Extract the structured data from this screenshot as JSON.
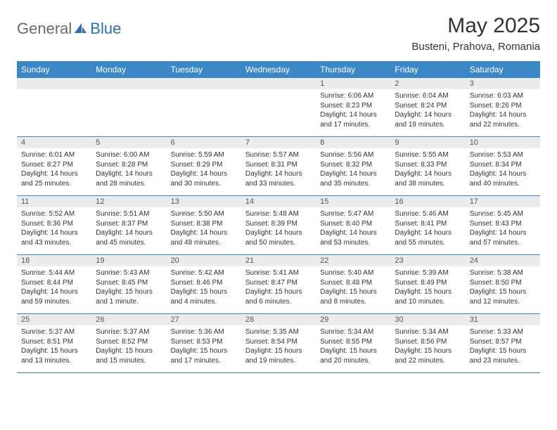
{
  "logo": {
    "text_general": "General",
    "text_blue": "Blue"
  },
  "title": "May 2025",
  "location": "Busteni, Prahova, Romania",
  "colors": {
    "header_bg": "#3b87c8",
    "header_text": "#ffffff",
    "daynum_bg": "#ececec",
    "row_border": "#3b87c8",
    "logo_general": "#6b6b6b",
    "logo_blue": "#2f6fad"
  },
  "day_headers": [
    "Sunday",
    "Monday",
    "Tuesday",
    "Wednesday",
    "Thursday",
    "Friday",
    "Saturday"
  ],
  "weeks": [
    [
      {
        "blank": true
      },
      {
        "blank": true
      },
      {
        "blank": true
      },
      {
        "blank": true
      },
      {
        "num": "1",
        "sunrise": "Sunrise: 6:06 AM",
        "sunset": "Sunset: 8:23 PM",
        "daylight": "Daylight: 14 hours and 17 minutes."
      },
      {
        "num": "2",
        "sunrise": "Sunrise: 6:04 AM",
        "sunset": "Sunset: 8:24 PM",
        "daylight": "Daylight: 14 hours and 19 minutes."
      },
      {
        "num": "3",
        "sunrise": "Sunrise: 6:03 AM",
        "sunset": "Sunset: 8:26 PM",
        "daylight": "Daylight: 14 hours and 22 minutes."
      }
    ],
    [
      {
        "num": "4",
        "sunrise": "Sunrise: 6:01 AM",
        "sunset": "Sunset: 8:27 PM",
        "daylight": "Daylight: 14 hours and 25 minutes."
      },
      {
        "num": "5",
        "sunrise": "Sunrise: 6:00 AM",
        "sunset": "Sunset: 8:28 PM",
        "daylight": "Daylight: 14 hours and 28 minutes."
      },
      {
        "num": "6",
        "sunrise": "Sunrise: 5:59 AM",
        "sunset": "Sunset: 8:29 PM",
        "daylight": "Daylight: 14 hours and 30 minutes."
      },
      {
        "num": "7",
        "sunrise": "Sunrise: 5:57 AM",
        "sunset": "Sunset: 8:31 PM",
        "daylight": "Daylight: 14 hours and 33 minutes."
      },
      {
        "num": "8",
        "sunrise": "Sunrise: 5:56 AM",
        "sunset": "Sunset: 8:32 PM",
        "daylight": "Daylight: 14 hours and 35 minutes."
      },
      {
        "num": "9",
        "sunrise": "Sunrise: 5:55 AM",
        "sunset": "Sunset: 8:33 PM",
        "daylight": "Daylight: 14 hours and 38 minutes."
      },
      {
        "num": "10",
        "sunrise": "Sunrise: 5:53 AM",
        "sunset": "Sunset: 8:34 PM",
        "daylight": "Daylight: 14 hours and 40 minutes."
      }
    ],
    [
      {
        "num": "11",
        "sunrise": "Sunrise: 5:52 AM",
        "sunset": "Sunset: 8:36 PM",
        "daylight": "Daylight: 14 hours and 43 minutes."
      },
      {
        "num": "12",
        "sunrise": "Sunrise: 5:51 AM",
        "sunset": "Sunset: 8:37 PM",
        "daylight": "Daylight: 14 hours and 45 minutes."
      },
      {
        "num": "13",
        "sunrise": "Sunrise: 5:50 AM",
        "sunset": "Sunset: 8:38 PM",
        "daylight": "Daylight: 14 hours and 48 minutes."
      },
      {
        "num": "14",
        "sunrise": "Sunrise: 5:48 AM",
        "sunset": "Sunset: 8:39 PM",
        "daylight": "Daylight: 14 hours and 50 minutes."
      },
      {
        "num": "15",
        "sunrise": "Sunrise: 5:47 AM",
        "sunset": "Sunset: 8:40 PM",
        "daylight": "Daylight: 14 hours and 53 minutes."
      },
      {
        "num": "16",
        "sunrise": "Sunrise: 5:46 AM",
        "sunset": "Sunset: 8:41 PM",
        "daylight": "Daylight: 14 hours and 55 minutes."
      },
      {
        "num": "17",
        "sunrise": "Sunrise: 5:45 AM",
        "sunset": "Sunset: 8:43 PM",
        "daylight": "Daylight: 14 hours and 57 minutes."
      }
    ],
    [
      {
        "num": "18",
        "sunrise": "Sunrise: 5:44 AM",
        "sunset": "Sunset: 8:44 PM",
        "daylight": "Daylight: 14 hours and 59 minutes."
      },
      {
        "num": "19",
        "sunrise": "Sunrise: 5:43 AM",
        "sunset": "Sunset: 8:45 PM",
        "daylight": "Daylight: 15 hours and 1 minute."
      },
      {
        "num": "20",
        "sunrise": "Sunrise: 5:42 AM",
        "sunset": "Sunset: 8:46 PM",
        "daylight": "Daylight: 15 hours and 4 minutes."
      },
      {
        "num": "21",
        "sunrise": "Sunrise: 5:41 AM",
        "sunset": "Sunset: 8:47 PM",
        "daylight": "Daylight: 15 hours and 6 minutes."
      },
      {
        "num": "22",
        "sunrise": "Sunrise: 5:40 AM",
        "sunset": "Sunset: 8:48 PM",
        "daylight": "Daylight: 15 hours and 8 minutes."
      },
      {
        "num": "23",
        "sunrise": "Sunrise: 5:39 AM",
        "sunset": "Sunset: 8:49 PM",
        "daylight": "Daylight: 15 hours and 10 minutes."
      },
      {
        "num": "24",
        "sunrise": "Sunrise: 5:38 AM",
        "sunset": "Sunset: 8:50 PM",
        "daylight": "Daylight: 15 hours and 12 minutes."
      }
    ],
    [
      {
        "num": "25",
        "sunrise": "Sunrise: 5:37 AM",
        "sunset": "Sunset: 8:51 PM",
        "daylight": "Daylight: 15 hours and 13 minutes."
      },
      {
        "num": "26",
        "sunrise": "Sunrise: 5:37 AM",
        "sunset": "Sunset: 8:52 PM",
        "daylight": "Daylight: 15 hours and 15 minutes."
      },
      {
        "num": "27",
        "sunrise": "Sunrise: 5:36 AM",
        "sunset": "Sunset: 8:53 PM",
        "daylight": "Daylight: 15 hours and 17 minutes."
      },
      {
        "num": "28",
        "sunrise": "Sunrise: 5:35 AM",
        "sunset": "Sunset: 8:54 PM",
        "daylight": "Daylight: 15 hours and 19 minutes."
      },
      {
        "num": "29",
        "sunrise": "Sunrise: 5:34 AM",
        "sunset": "Sunset: 8:55 PM",
        "daylight": "Daylight: 15 hours and 20 minutes."
      },
      {
        "num": "30",
        "sunrise": "Sunrise: 5:34 AM",
        "sunset": "Sunset: 8:56 PM",
        "daylight": "Daylight: 15 hours and 22 minutes."
      },
      {
        "num": "31",
        "sunrise": "Sunrise: 5:33 AM",
        "sunset": "Sunset: 8:57 PM",
        "daylight": "Daylight: 15 hours and 23 minutes."
      }
    ]
  ]
}
